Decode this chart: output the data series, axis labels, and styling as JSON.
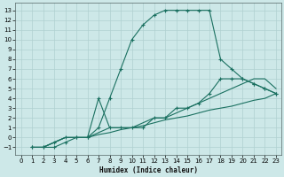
{
  "xlabel": "Humidex (Indice chaleur)",
  "bg_color": "#cde8e8",
  "grid_color": "#b0d0d0",
  "line_color": "#1a7060",
  "xlim": [
    -0.5,
    23.5
  ],
  "ylim": [
    -1.8,
    13.8
  ],
  "xticks": [
    0,
    1,
    2,
    3,
    4,
    5,
    6,
    7,
    8,
    9,
    10,
    11,
    12,
    13,
    14,
    15,
    16,
    17,
    18,
    19,
    20,
    21,
    22,
    23
  ],
  "yticks": [
    -1,
    0,
    1,
    2,
    3,
    4,
    5,
    6,
    7,
    8,
    9,
    10,
    11,
    12,
    13
  ],
  "lines": [
    {
      "x": [
        1,
        2,
        3,
        4,
        5,
        6,
        7,
        8,
        9,
        10,
        11,
        12,
        13,
        14,
        15,
        16,
        17,
        18,
        19,
        20,
        21,
        22,
        23
      ],
      "y": [
        -1,
        -1,
        -1,
        -0.5,
        0,
        0,
        1,
        4,
        7,
        10,
        11.5,
        12.5,
        13,
        13,
        13,
        13,
        13,
        8,
        7,
        6,
        5.5,
        5,
        4.5
      ],
      "marker": "+"
    },
    {
      "x": [
        1,
        2,
        3,
        4,
        5,
        6,
        7,
        8,
        9,
        10,
        11,
        12,
        13,
        14,
        15,
        16,
        17,
        18,
        19,
        20,
        21,
        22,
        23
      ],
      "y": [
        -1,
        -1,
        -0.5,
        0,
        0,
        0,
        4,
        1,
        1,
        1,
        1,
        2,
        2,
        3,
        3,
        3.5,
        4.5,
        6,
        6,
        6,
        5.5,
        5,
        4.5
      ],
      "marker": "+"
    },
    {
      "x": [
        1,
        2,
        3,
        4,
        5,
        6,
        7,
        8,
        9,
        10,
        11,
        12,
        13,
        14,
        15,
        16,
        17,
        18,
        19,
        20,
        21,
        22,
        23
      ],
      "y": [
        -1,
        -1,
        -0.5,
        0,
        0,
        0,
        0.5,
        1,
        1,
        1,
        1.5,
        2,
        2,
        2.5,
        3,
        3.5,
        4,
        4.5,
        5,
        5.5,
        6,
        6,
        5
      ],
      "marker": null
    },
    {
      "x": [
        1,
        2,
        3,
        4,
        5,
        6,
        7,
        8,
        9,
        10,
        11,
        12,
        13,
        14,
        15,
        16,
        17,
        18,
        19,
        20,
        21,
        22,
        23
      ],
      "y": [
        -1,
        -1,
        -0.5,
        0,
        0,
        0,
        0.3,
        0.5,
        0.8,
        1,
        1.2,
        1.5,
        1.8,
        2,
        2.2,
        2.5,
        2.8,
        3,
        3.2,
        3.5,
        3.8,
        4,
        4.5
      ],
      "marker": null
    }
  ]
}
